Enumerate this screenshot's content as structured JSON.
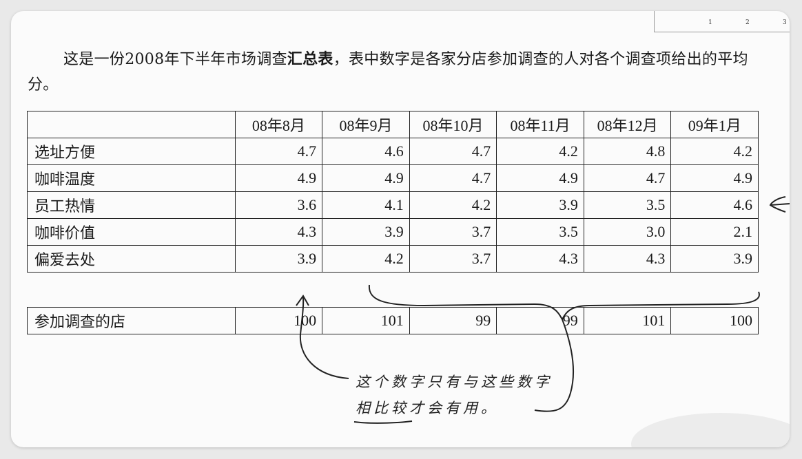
{
  "page_numbers": [
    "1",
    "2",
    "3"
  ],
  "intro": {
    "part1": "这是一份2008年下半年市场调查",
    "bold": "汇总表",
    "part2": "，表中数字是各家分店参加调查的人对各个调查项给出的平均分。"
  },
  "survey_table": {
    "columns": [
      "08年8月",
      "08年9月",
      "08年10月",
      "08年11月",
      "08年12月",
      "09年1月"
    ],
    "rows": [
      {
        "label": "选址方便",
        "values": [
          "4.7",
          "4.6",
          "4.7",
          "4.2",
          "4.8",
          "4.2"
        ]
      },
      {
        "label": "咖啡温度",
        "values": [
          "4.9",
          "4.9",
          "4.7",
          "4.9",
          "4.7",
          "4.9"
        ]
      },
      {
        "label": "员工热情",
        "values": [
          "3.6",
          "4.1",
          "4.2",
          "3.9",
          "3.5",
          "4.6"
        ]
      },
      {
        "label": "咖啡价值",
        "values": [
          "4.3",
          "3.9",
          "3.7",
          "3.5",
          "3.0",
          "2.1"
        ]
      },
      {
        "label": "偏爱去处",
        "values": [
          "3.9",
          "4.2",
          "3.7",
          "4.3",
          "4.3",
          "3.9"
        ]
      }
    ]
  },
  "stores_row": {
    "label": "参加调查的店",
    "values": [
      "100",
      "101",
      "99",
      "99",
      "101",
      "100"
    ]
  },
  "handwritten_note": {
    "line1": "这个数字只有与这些数字",
    "line2": "相比较才会有用。"
  }
}
